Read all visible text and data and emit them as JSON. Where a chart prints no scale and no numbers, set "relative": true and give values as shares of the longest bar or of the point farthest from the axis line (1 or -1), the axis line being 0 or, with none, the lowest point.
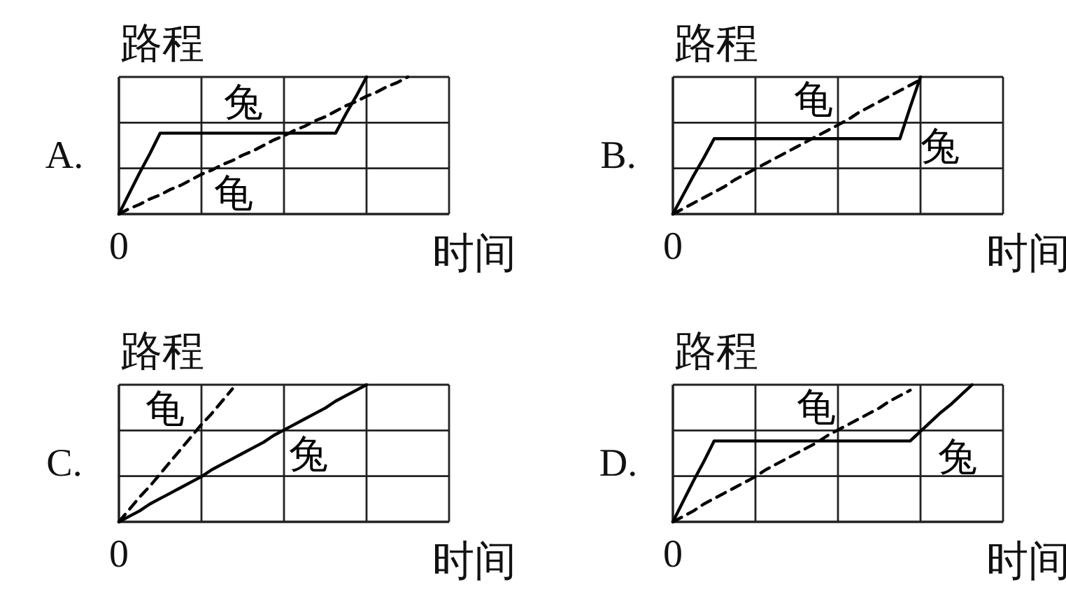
{
  "chart_data": [
    {
      "type": "line",
      "title": "A.",
      "xlabel": "时间",
      "ylabel": "路程",
      "relative": true,
      "grid": true,
      "annotations": [
        "0"
      ],
      "categories": [
        null,
        null,
        null,
        null,
        null,
        null,
        null,
        null,
        null,
        null,
        null,
        null,
        null,
        null,
        null,
        null,
        null,
        null,
        null,
        null,
        null,
        null,
        null,
        null,
        null,
        null,
        null,
        null,
        null,
        null,
        null,
        null,
        null
      ],
      "series": [
        {
          "name": "兔",
          "color": "#000000",
          "line_style": "solid",
          "values": [
            0,
            0.15,
            0.3,
            0.44,
            0.59,
            0.59,
            0.59,
            0.59,
            0.59,
            0.59,
            0.59,
            0.59,
            0.59,
            0.59,
            0.59,
            0.59,
            0.59,
            0.59,
            0.59,
            0.59,
            0.59,
            0.59,
            0.73,
            0.86,
            1,
            null,
            null,
            null,
            null,
            null,
            null,
            null,
            null
          ]
        },
        {
          "name": "龟",
          "color": "#000000",
          "line_style": "dashed",
          "values": [
            0,
            0.04,
            0.07,
            0.11,
            0.14,
            0.18,
            0.21,
            0.25,
            0.29,
            0.32,
            0.36,
            0.39,
            0.43,
            0.46,
            0.5,
            0.54,
            0.57,
            0.61,
            0.64,
            0.68,
            0.71,
            0.75,
            0.79,
            0.82,
            0.86,
            0.89,
            0.93,
            0.96,
            1,
            null,
            null,
            null,
            null
          ]
        }
      ]
    },
    {
      "type": "line",
      "title": "B.",
      "xlabel": "时间",
      "ylabel": "路程",
      "relative": true,
      "grid": true,
      "annotations": [
        "0"
      ],
      "categories": [
        null,
        null,
        null,
        null,
        null,
        null,
        null,
        null,
        null,
        null,
        null,
        null,
        null,
        null,
        null,
        null,
        null,
        null,
        null,
        null,
        null,
        null,
        null,
        null,
        null,
        null,
        null,
        null,
        null,
        null,
        null,
        null,
        null
      ],
      "series": [
        {
          "name": "兔",
          "color": "#000000",
          "line_style": "solid",
          "values": [
            0,
            0.14,
            0.28,
            0.41,
            0.55,
            0.55,
            0.55,
            0.55,
            0.55,
            0.55,
            0.55,
            0.55,
            0.55,
            0.55,
            0.55,
            0.55,
            0.55,
            0.55,
            0.55,
            0.55,
            0.55,
            0.55,
            0.55,
            0.78,
            1,
            null,
            null,
            null,
            null,
            null,
            null,
            null,
            null
          ]
        },
        {
          "name": "龟",
          "color": "#000000",
          "line_style": "dashed",
          "values": [
            0,
            0.04,
            0.08,
            0.12,
            0.16,
            0.2,
            0.25,
            0.29,
            0.33,
            0.37,
            0.41,
            0.45,
            0.49,
            0.53,
            0.57,
            0.61,
            0.65,
            0.69,
            0.74,
            0.78,
            0.82,
            0.86,
            0.9,
            0.94,
            0.98,
            null,
            null,
            null,
            null,
            null,
            null,
            null,
            null
          ]
        }
      ]
    },
    {
      "type": "line",
      "title": "C.",
      "xlabel": "时间",
      "ylabel": "路程",
      "relative": true,
      "grid": true,
      "annotations": [
        "0"
      ],
      "categories": [
        null,
        null,
        null,
        null,
        null,
        null,
        null,
        null,
        null,
        null,
        null,
        null,
        null,
        null,
        null,
        null,
        null,
        null,
        null,
        null,
        null,
        null,
        null,
        null,
        null,
        null,
        null,
        null,
        null,
        null,
        null,
        null,
        null
      ],
      "series": [
        {
          "name": "兔",
          "color": "#000000",
          "line_style": "solid",
          "values": [
            0,
            0.04,
            0.08,
            0.13,
            0.17,
            0.21,
            0.25,
            0.29,
            0.33,
            0.38,
            0.42,
            0.46,
            0.5,
            0.54,
            0.58,
            0.63,
            0.67,
            0.71,
            0.75,
            0.79,
            0.83,
            0.88,
            0.92,
            0.96,
            1,
            null,
            null,
            null,
            null,
            null,
            null,
            null,
            null
          ]
        },
        {
          "name": "龟",
          "color": "#000000",
          "line_style": "dashed",
          "values": [
            0,
            0.09,
            0.18,
            0.26,
            0.35,
            0.44,
            0.53,
            0.62,
            0.71,
            0.79,
            0.88,
            0.97,
            null,
            null,
            null,
            null,
            null,
            null,
            null,
            null,
            null,
            null,
            null,
            null,
            null,
            null,
            null,
            null,
            null,
            null,
            null,
            null,
            null
          ]
        }
      ]
    },
    {
      "type": "line",
      "title": "D.",
      "xlabel": "时间",
      "ylabel": "路程",
      "relative": true,
      "grid": true,
      "annotations": [
        "0"
      ],
      "categories": [
        null,
        null,
        null,
        null,
        null,
        null,
        null,
        null,
        null,
        null,
        null,
        null,
        null,
        null,
        null,
        null,
        null,
        null,
        null,
        null,
        null,
        null,
        null,
        null,
        null,
        null,
        null,
        null,
        null,
        null,
        null,
        null,
        null
      ],
      "series": [
        {
          "name": "兔",
          "color": "#000000",
          "line_style": "solid",
          "values": [
            0,
            0.15,
            0.3,
            0.44,
            0.59,
            0.59,
            0.59,
            0.59,
            0.59,
            0.59,
            0.59,
            0.59,
            0.59,
            0.59,
            0.59,
            0.59,
            0.59,
            0.59,
            0.59,
            0.59,
            0.59,
            0.59,
            0.59,
            0.59,
            0.66,
            0.73,
            0.8,
            0.86,
            0.93,
            1,
            null,
            null,
            null
          ]
        },
        {
          "name": "龟",
          "color": "#000000",
          "line_style": "dashed",
          "values": [
            0,
            0.04,
            0.08,
            0.13,
            0.17,
            0.21,
            0.25,
            0.29,
            0.33,
            0.38,
            0.42,
            0.46,
            0.5,
            0.54,
            0.58,
            0.63,
            0.67,
            0.71,
            0.75,
            0.79,
            0.83,
            0.88,
            0.92,
            0.96,
            null,
            null,
            null,
            null,
            null,
            null,
            null,
            null,
            null
          ]
        }
      ]
    }
  ]
}
